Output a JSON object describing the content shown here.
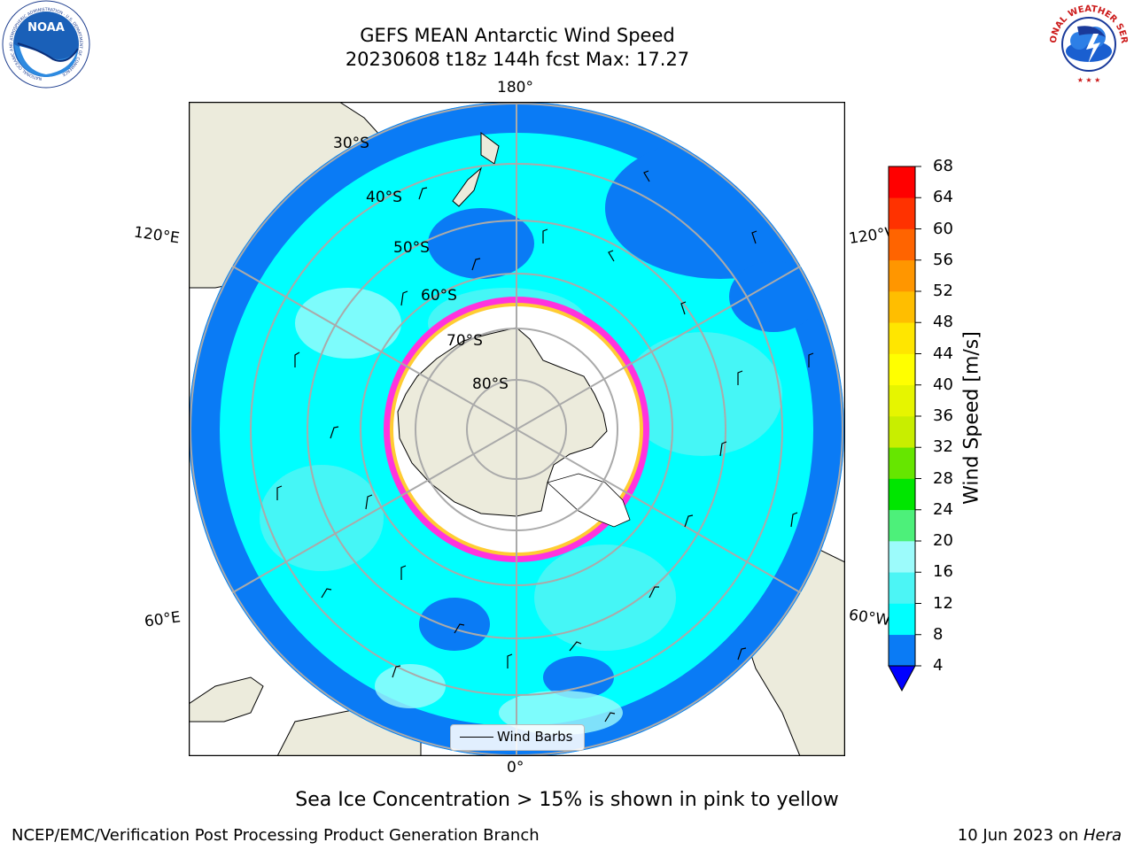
{
  "header": {
    "title_line1": "GEFS MEAN Antarctic Wind Speed",
    "title_line2": "20230608 t18z 144h fcst   Max: 17.27"
  },
  "logos": {
    "noaa": {
      "text": "NOAA",
      "ring_text": "NATIONAL OCEANIC AND ATMOSPHERIC ADMINISTRATION · U.S. DEPARTMENT OF COMMERCE"
    },
    "nws": {
      "ring_text": "NATIONAL WEATHER SERVICE"
    }
  },
  "map": {
    "projection": "south polar stereographic",
    "longitude_labels": {
      "top": "180°",
      "bottom": "0°",
      "upper_left": "120°E",
      "upper_right": "120°W",
      "lower_left": "60°E",
      "lower_right": "60°W"
    },
    "latitude_labels": [
      "30°S",
      "40°S",
      "50°S",
      "60°S",
      "70°S",
      "80°S"
    ],
    "legend": {
      "label": "Wind Barbs"
    },
    "colors": {
      "land": "#ecebdc",
      "ice_sheet": "#ffffff",
      "sea_ice_edge": [
        "#ff33dd",
        "#ffcc33"
      ],
      "graticule": "#aaaaaa"
    }
  },
  "colorbar": {
    "label": "Wind Speed [m/s]",
    "ticks": [
      "4",
      "8",
      "12",
      "16",
      "20",
      "24",
      "28",
      "32",
      "36",
      "40",
      "44",
      "48",
      "52",
      "56",
      "60",
      "64",
      "68"
    ],
    "colors": [
      "#0a7bf5",
      "#00ffff",
      "#4cf5f5",
      "#9cfbfb",
      "#4df07a",
      "#00e600",
      "#66e600",
      "#c8ee00",
      "#e6f500",
      "#ffff00",
      "#ffe600",
      "#ffbe00",
      "#ff9600",
      "#ff6400",
      "#ff3200",
      "#ff0000"
    ],
    "under_color": "#0000ff"
  },
  "caption": "Sea Ice Concentration > 15% is shown in pink to yellow",
  "footer": {
    "left": "NCEP/EMC/Verification Post Processing Product Generation Branch",
    "right_date": "10 Jun 2023 on ",
    "right_host": "Hera"
  }
}
